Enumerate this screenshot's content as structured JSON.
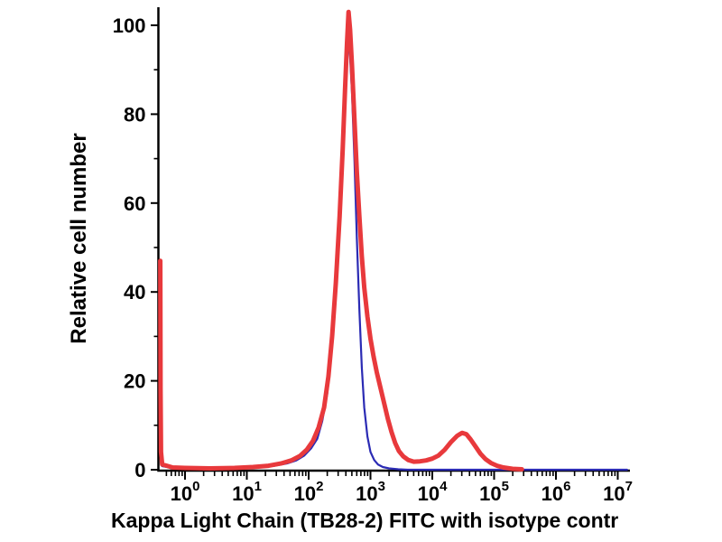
{
  "chart_data": {
    "type": "line",
    "subtype": "flow-cytometry-histogram",
    "title": "",
    "xlabel": "Kappa Light Chain (TB28-2) FITC with isotype contr",
    "ylabel": "Relative cell number",
    "x_scale": "log10",
    "x_tick_exponents": [
      0,
      1,
      2,
      3,
      4,
      5,
      6,
      7
    ],
    "x_range_log10": [
      -0.4,
      7.15
    ],
    "y_ticks": [
      0,
      20,
      40,
      60,
      80,
      100
    ],
    "y_minor_ticks": [
      10,
      30,
      50,
      70,
      90
    ],
    "ylim": [
      0,
      104
    ],
    "grid": false,
    "legend": "none",
    "axis_color": "#000000",
    "series": [
      {
        "name": "isotype control",
        "color": "#2b2bb4",
        "line_width": 2.2,
        "points_log10x_y": [
          [
            -0.4,
            45
          ],
          [
            -0.395,
            14
          ],
          [
            -0.388,
            3
          ],
          [
            -0.37,
            0.8
          ],
          [
            -0.2,
            0.4
          ],
          [
            0.0,
            0.3
          ],
          [
            0.5,
            0.3
          ],
          [
            0.9,
            0.4
          ],
          [
            1.2,
            0.6
          ],
          [
            1.45,
            0.9
          ],
          [
            1.65,
            1.4
          ],
          [
            1.8,
            2.1
          ],
          [
            1.93,
            3.2
          ],
          [
            2.04,
            4.8
          ],
          [
            2.14,
            7.0
          ],
          [
            2.22,
            11.0
          ],
          [
            2.3,
            17.0
          ],
          [
            2.37,
            27.0
          ],
          [
            2.43,
            40.0
          ],
          [
            2.49,
            55.0
          ],
          [
            2.54,
            70.0
          ],
          [
            2.58,
            84.0
          ],
          [
            2.61,
            92.0
          ],
          [
            2.64,
            96.5
          ],
          [
            2.665,
            94.0
          ],
          [
            2.7,
            85.0
          ],
          [
            2.74,
            70.0
          ],
          [
            2.78,
            52.0
          ],
          [
            2.82,
            36.0
          ],
          [
            2.86,
            23.0
          ],
          [
            2.9,
            14.0
          ],
          [
            2.95,
            7.5
          ],
          [
            3.0,
            4.0
          ],
          [
            3.06,
            2.2
          ],
          [
            3.12,
            1.2
          ],
          [
            3.2,
            0.6
          ],
          [
            3.3,
            0.3
          ],
          [
            3.45,
            0.1
          ],
          [
            3.6,
            0.0
          ],
          [
            4.0,
            0.0
          ],
          [
            4.5,
            0.0
          ],
          [
            5.0,
            0.0
          ],
          [
            5.5,
            0.0
          ],
          [
            6.0,
            0.0
          ],
          [
            6.5,
            0.0
          ],
          [
            7.15,
            0.0
          ]
        ]
      },
      {
        "name": "Kappa Light Chain (TB28-2) FITC",
        "color": "#e8393c",
        "line_width": 5,
        "points_log10x_y": [
          [
            -0.4,
            47
          ],
          [
            -0.395,
            18
          ],
          [
            -0.388,
            4
          ],
          [
            -0.37,
            1.2
          ],
          [
            -0.2,
            0.5
          ],
          [
            0.0,
            0.4
          ],
          [
            0.4,
            0.3
          ],
          [
            0.8,
            0.4
          ],
          [
            1.1,
            0.6
          ],
          [
            1.35,
            0.9
          ],
          [
            1.55,
            1.4
          ],
          [
            1.72,
            2.1
          ],
          [
            1.86,
            3.1
          ],
          [
            1.97,
            4.5
          ],
          [
            2.07,
            6.5
          ],
          [
            2.16,
            9.5
          ],
          [
            2.25,
            14.0
          ],
          [
            2.32,
            21.0
          ],
          [
            2.38,
            30.0
          ],
          [
            2.44,
            42.0
          ],
          [
            2.5,
            57.0
          ],
          [
            2.55,
            72.0
          ],
          [
            2.59,
            86.0
          ],
          [
            2.62,
            96.0
          ],
          [
            2.645,
            103.0
          ],
          [
            2.67,
            99.0
          ],
          [
            2.7,
            91.0
          ],
          [
            2.74,
            79.0
          ],
          [
            2.78,
            67.0
          ],
          [
            2.82,
            57.0
          ],
          [
            2.86,
            48.0
          ],
          [
            2.9,
            41.0
          ],
          [
            2.95,
            34.5
          ],
          [
            3.0,
            29.5
          ],
          [
            3.05,
            25.5
          ],
          [
            3.1,
            22.0
          ],
          [
            3.16,
            18.5
          ],
          [
            3.22,
            15.0
          ],
          [
            3.28,
            11.5
          ],
          [
            3.34,
            8.5
          ],
          [
            3.4,
            6.0
          ],
          [
            3.46,
            4.2
          ],
          [
            3.53,
            3.0
          ],
          [
            3.61,
            2.2
          ],
          [
            3.7,
            1.8
          ],
          [
            3.8,
            1.9
          ],
          [
            3.9,
            2.1
          ],
          [
            4.0,
            2.5
          ],
          [
            4.1,
            3.2
          ],
          [
            4.2,
            4.5
          ],
          [
            4.3,
            6.2
          ],
          [
            4.4,
            7.6
          ],
          [
            4.48,
            8.3
          ],
          [
            4.55,
            8.0
          ],
          [
            4.62,
            6.8
          ],
          [
            4.7,
            5.2
          ],
          [
            4.78,
            3.6
          ],
          [
            4.86,
            2.4
          ],
          [
            4.95,
            1.5
          ],
          [
            5.05,
            0.9
          ],
          [
            5.15,
            0.5
          ],
          [
            5.3,
            0.2
          ],
          [
            5.45,
            0.1
          ]
        ]
      }
    ]
  }
}
